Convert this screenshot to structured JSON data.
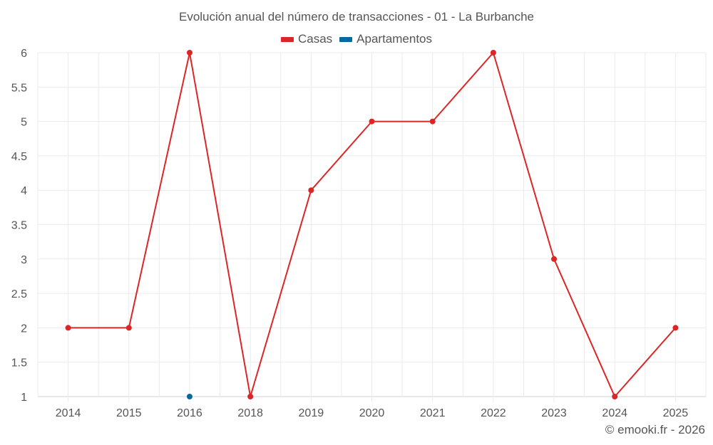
{
  "chart_data": {
    "type": "line",
    "title": "Evolución anual del número de transacciones - 01 - La Burbanche",
    "xlabel": "",
    "ylabel": "",
    "categories": [
      "2014",
      "2015",
      "2016",
      "2018",
      "2019",
      "2020",
      "2021",
      "2022",
      "2023",
      "2024",
      "2025"
    ],
    "series": [
      {
        "name": "Casas",
        "color": "#dc2626",
        "values": [
          2,
          2,
          6,
          1,
          4,
          5,
          5,
          6,
          3,
          1,
          2
        ]
      },
      {
        "name": "Apartamentos",
        "color": "#0369a1",
        "values": [
          null,
          null,
          1,
          null,
          null,
          null,
          null,
          null,
          null,
          null,
          null
        ]
      }
    ],
    "ylim": [
      1,
      6
    ],
    "yticks": [
      1,
      1.5,
      2,
      2.5,
      3,
      3.5,
      4,
      4.5,
      5,
      5.5,
      6
    ],
    "grid": true,
    "legend_position": "top"
  },
  "legend": [
    {
      "label": "Casas",
      "color": "#dc2626"
    },
    {
      "label": "Apartamentos",
      "color": "#0369a1"
    }
  ],
  "credit": "© emooki.fr - 2026"
}
